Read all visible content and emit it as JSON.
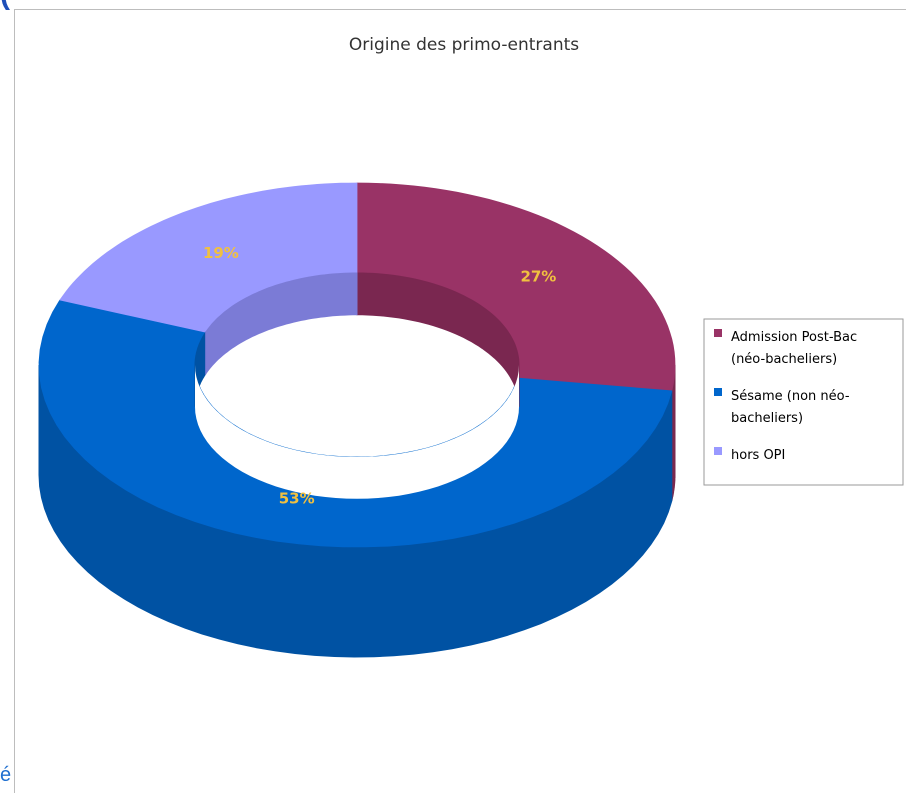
{
  "page": {
    "top_fragment": "(",
    "bottom_fragment": "é"
  },
  "chart_data": {
    "type": "pie",
    "style": "3d-donut",
    "title": "Origine des primo-entrants",
    "categories": [
      "Admission Post-Bac (néo-bacheliers)",
      "Sésame (non néo-bacheliers)",
      "hors OPI"
    ],
    "values": [
      27,
      53,
      19
    ],
    "value_labels": [
      "27%",
      "53%",
      "19%"
    ],
    "legend": {
      "placement": "right",
      "lines": [
        [
          "Admission Post-Bac",
          "(néo-bacheliers)"
        ],
        [
          "Sésame (non néo-",
          "bacheliers)"
        ],
        [
          "hors OPI"
        ]
      ]
    },
    "colors": [
      "#993366",
      "#0066cc",
      "#9999ff"
    ],
    "side_colors": [
      "#7a294f",
      "#0052a3",
      "#7b7bd6"
    ],
    "inner_colors": [
      "#7a2750",
      "#0052a3",
      "#7b7bd6"
    ],
    "label_color": "#f0c040"
  }
}
